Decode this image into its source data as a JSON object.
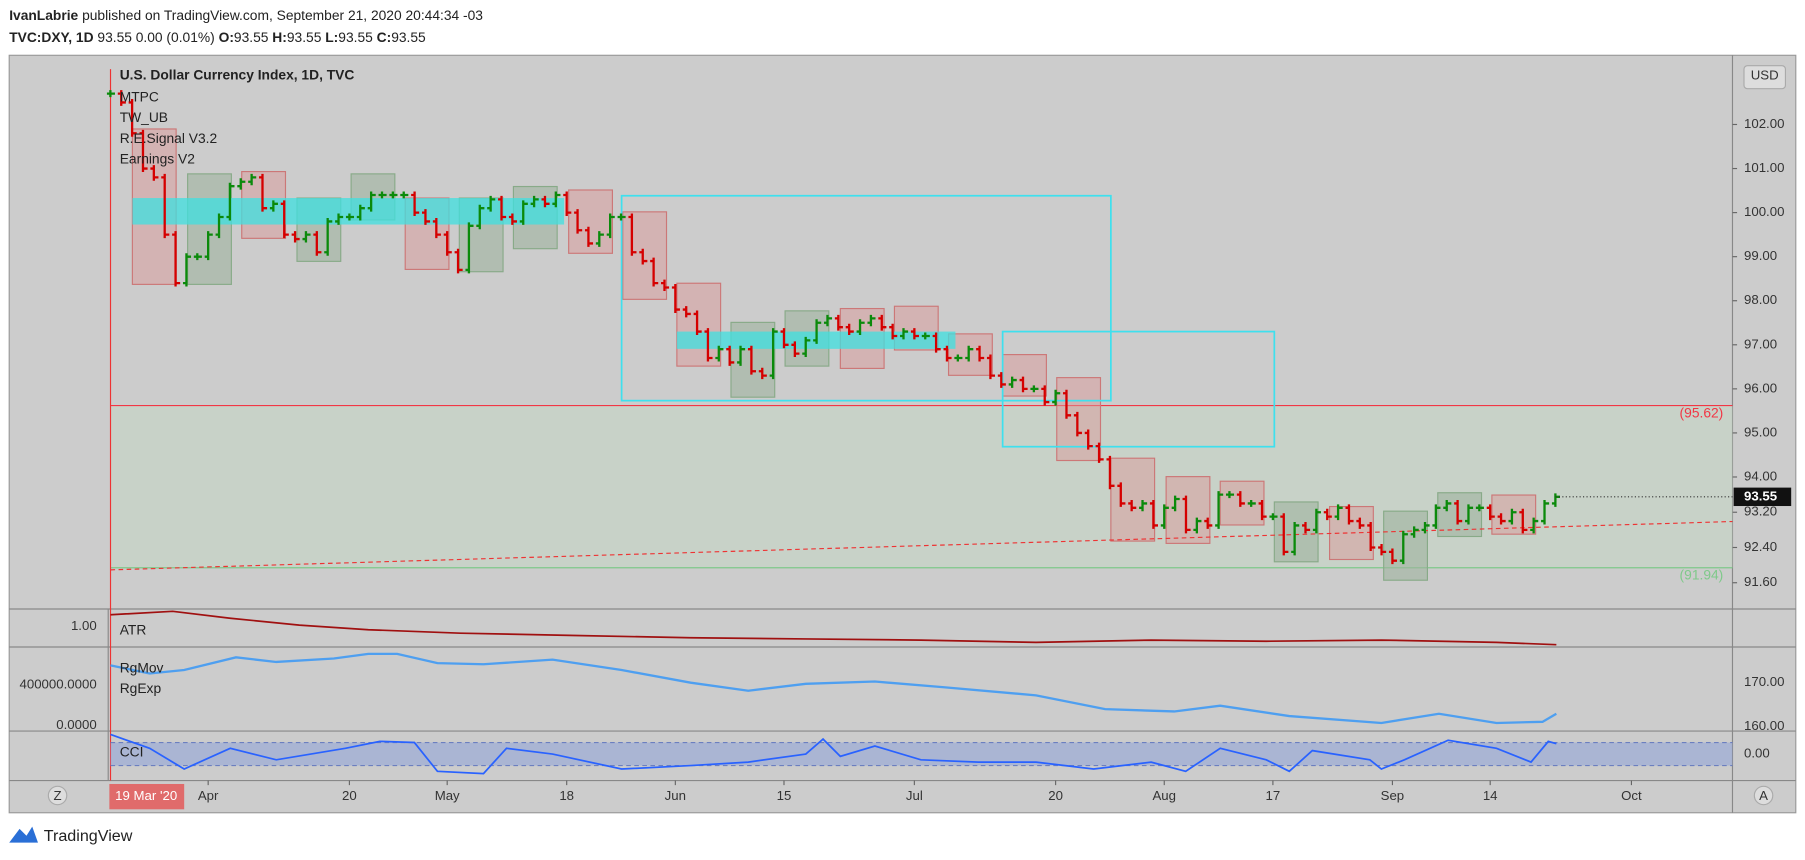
{
  "header": {
    "author": "IvanLabrie",
    "published": "published on TradingView.com, September 21, 2020 20:44:34 -03",
    "symbol": "TVC:DXY, 1D",
    "change": "93.55 0.00 (0.01%)",
    "ohlc": [
      {
        "key": "O:",
        "value": "93.55"
      },
      {
        "key": "H:",
        "value": "93.55"
      },
      {
        "key": "L:",
        "value": "93.55"
      },
      {
        "key": "C:",
        "value": "93.55"
      }
    ]
  },
  "chart_data": {
    "type": "ohlc",
    "title": "U.S. Dollar Currency Index, 1D, TVC",
    "indicators": [
      "MTPC",
      "TW_UB",
      "R.E.Signal V3.2",
      "Earnings V2"
    ],
    "currency": "USD",
    "values": [
      102.7,
      102.5,
      101.8,
      101.0,
      100.8,
      99.5,
      98.4,
      99.0,
      99.0,
      99.5,
      99.9,
      100.6,
      100.7,
      100.8,
      100.1,
      100.2,
      99.5,
      99.4,
      99.5,
      99.1,
      99.8,
      99.9,
      99.9,
      100.1,
      100.4,
      100.4,
      100.4,
      100.4,
      100.0,
      99.8,
      99.5,
      99.1,
      98.7,
      99.7,
      100.1,
      100.3,
      99.9,
      99.8,
      100.2,
      100.3,
      100.2,
      100.4,
      100.0,
      99.6,
      99.3,
      99.5,
      99.9,
      99.9,
      99.1,
      98.9,
      98.4,
      98.3,
      97.8,
      97.7,
      97.3,
      96.7,
      96.9,
      96.6,
      96.9,
      96.4,
      96.3,
      97.3,
      97.0,
      96.8,
      97.1,
      97.5,
      97.6,
      97.4,
      97.3,
      97.5,
      97.6,
      97.4,
      97.2,
      97.3,
      97.2,
      97.2,
      96.9,
      96.7,
      96.7,
      96.9,
      96.7,
      96.3,
      96.1,
      96.2,
      96.0,
      96.0,
      95.7,
      95.9,
      95.4,
      95.0,
      94.7,
      94.4,
      93.8,
      93.4,
      93.3,
      93.4,
      92.9,
      93.3,
      93.5,
      92.8,
      93.0,
      92.9,
      93.6,
      93.6,
      93.4,
      93.4,
      93.1,
      93.1,
      92.3,
      92.9,
      92.8,
      93.2,
      93.1,
      93.3,
      93.0,
      92.9,
      92.4,
      92.3,
      92.1,
      92.7,
      92.8,
      92.9,
      93.3,
      93.4,
      93.0,
      93.3,
      93.3,
      93.1,
      93.0,
      93.2,
      92.8,
      93.0,
      93.4,
      93.55
    ],
    "up_color": "#0b8a0b",
    "down_color": "#d50000",
    "ylim": [
      91.03,
      103.57
    ],
    "yticks": [
      {
        "value": 102,
        "label": "102.00"
      },
      {
        "value": 101,
        "label": "101.00"
      },
      {
        "value": 100,
        "label": "100.00"
      },
      {
        "value": 99,
        "label": "99.00"
      },
      {
        "value": 98,
        "label": "98.00"
      },
      {
        "value": 97,
        "label": "97.00"
      },
      {
        "value": 96,
        "label": "96.00"
      },
      {
        "value": 95,
        "label": "95.00"
      },
      {
        "value": 94,
        "label": "94.00"
      },
      {
        "value": 93.2,
        "label": "93.20"
      },
      {
        "value": 92.4,
        "label": "92.40"
      },
      {
        "value": 91.6,
        "label": "91.60"
      }
    ],
    "xlim": [
      -0.2,
      149.3
    ],
    "xticks": [
      {
        "value": 9,
        "label": "Apr"
      },
      {
        "value": 22,
        "label": "20"
      },
      {
        "value": 31,
        "label": "May"
      },
      {
        "value": 42,
        "label": "18"
      },
      {
        "value": 52,
        "label": "Jun"
      },
      {
        "value": 62,
        "label": "15"
      },
      {
        "value": 74,
        "label": "Jul"
      },
      {
        "value": 87,
        "label": "20"
      },
      {
        "value": 97,
        "label": "Aug"
      },
      {
        "value": 107,
        "label": "17"
      },
      {
        "value": 118,
        "label": "Sep"
      },
      {
        "value": 127,
        "label": "14"
      },
      {
        "value": 140,
        "label": "Oct"
      }
    ],
    "last_price": 93.55,
    "cursor_label": "19 Mar '20",
    "levels": [
      {
        "value": 95.62,
        "label": "(95.62)",
        "color": "#f23645"
      },
      {
        "value": 91.94,
        "label": "(91.94)",
        "color": "#7fc98a"
      }
    ]
  },
  "panes": {
    "atr": {
      "name": "ATR",
      "left": "1.00"
    },
    "range": {
      "names": [
        "RgMov",
        "RgExp"
      ],
      "left": [
        "400000.0000",
        "0.0000"
      ],
      "right": [
        "170.00",
        "160.00"
      ]
    },
    "cci": {
      "name": "CCI",
      "right": "0.00"
    }
  },
  "footer": {
    "brand": "TradingView",
    "left_button": "Z",
    "right_button": "A"
  }
}
